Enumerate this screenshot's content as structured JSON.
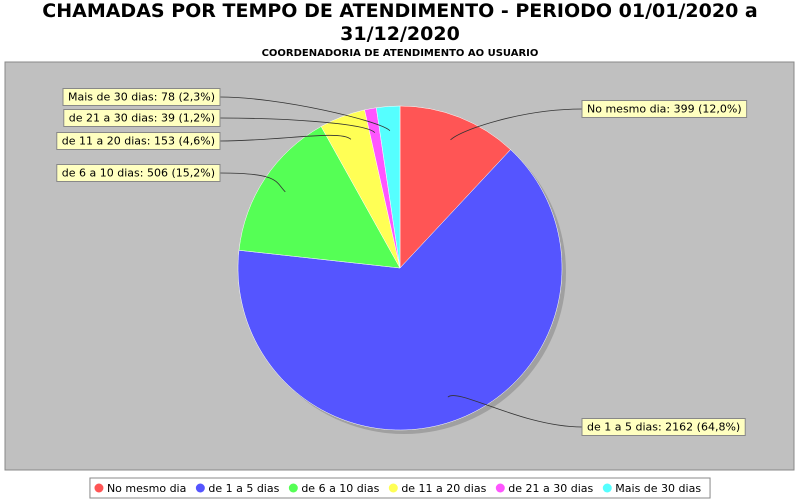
{
  "chart_data": {
    "type": "pie",
    "title": "CHAMADAS POR TEMPO DE ATENDIMENTO - PERIODO 01/01/2020 a 31/12/2020",
    "subtitle": "COORDENADORIA DE ATENDIMENTO AO USUARIO",
    "categories": [
      "No mesmo dia",
      "de 1 a 5 dias",
      "de 6 a 10 dias",
      "de 11 a 20 dias",
      "de 21 a 30 dias",
      "Mais de 30 dias"
    ],
    "values": [
      399,
      2162,
      506,
      153,
      39,
      78
    ],
    "value_labels": [
      "No mesmo dia: 399 (12,0%)",
      "de 1 a 5 dias: 2162 (64,8%)",
      "de 6 a 10 dias: 506 (15,2%)",
      "de 11 a 20 dias: 153 (4,6%)",
      "de 21 a 30 dias: 39 (1,2%)",
      "Mais de 30 dias: 78 (2,3%)"
    ],
    "colors": [
      "#ff5555",
      "#5555ff",
      "#55ff55",
      "#ffff55",
      "#ff55ff",
      "#55ffff"
    ],
    "legend": "bottom"
  }
}
